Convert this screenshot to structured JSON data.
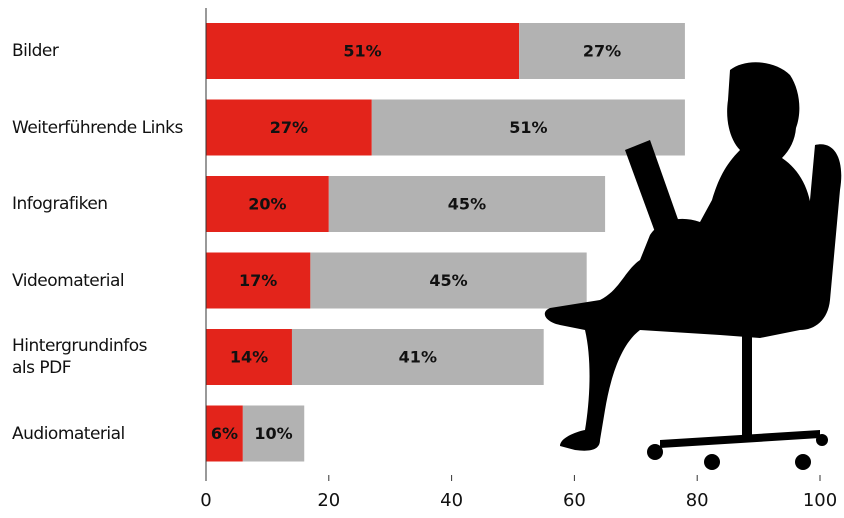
{
  "chart_data": {
    "type": "stacked-bar-horizontal",
    "categories": [
      "Bilder",
      "Weiterführende Links",
      "Infografiken",
      "Videomaterial",
      "Hintergrundinfos\nals PDF",
      "Audiomaterial"
    ],
    "series": [
      {
        "color": "#e3241b",
        "values": [
          51,
          27,
          20,
          17,
          14,
          6
        ],
        "value_labels": [
          "51%",
          "27%",
          "20%",
          "17%",
          "14%",
          "6%"
        ]
      },
      {
        "color": "#b2b2b2",
        "values": [
          27,
          51,
          45,
          45,
          41,
          10
        ],
        "value_labels": [
          "27%",
          "51%",
          "45%",
          "45%",
          "41%",
          "10%"
        ]
      }
    ],
    "xlim": [
      0,
      100
    ],
    "xticks": [
      0,
      20,
      40,
      60,
      80,
      100
    ]
  }
}
